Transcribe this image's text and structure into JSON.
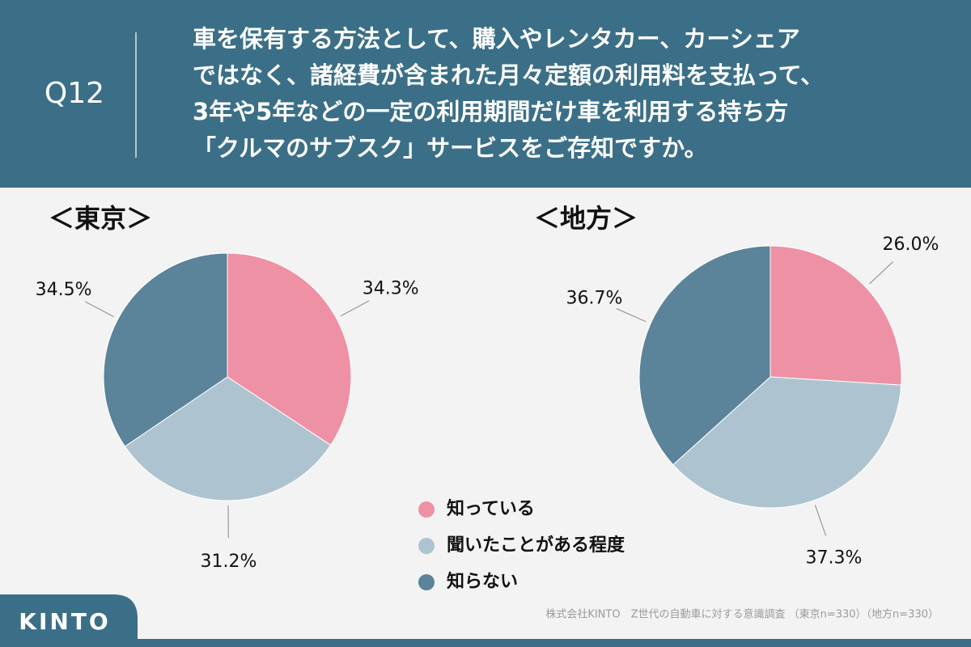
{
  "header": {
    "label": "Q12",
    "question": [
      "車を保有する方法として、購入やレンタカー、カーシェア",
      "ではなく、諸経費が含まれた月々定額の利用料を支払って、",
      "3年や5年などの一定の利用期間だけ車を利用する持ち方",
      "「クルマのサブスク」サービスをご存知ですか。"
    ]
  },
  "chart_data": [
    {
      "type": "pie",
      "title": "＜東京＞",
      "categories": [
        "知っている",
        "聞いたことがある程度",
        "知らない"
      ],
      "values": [
        34.3,
        31.2,
        34.5
      ],
      "value_labels": [
        "34.3%",
        "31.2%",
        "34.5%"
      ],
      "colors": [
        "#ee91a5",
        "#adc4d0",
        "#5b8399"
      ]
    },
    {
      "type": "pie",
      "title": "＜地方＞",
      "categories": [
        "知っている",
        "聞いたことがある程度",
        "知らない"
      ],
      "values": [
        26.0,
        37.3,
        36.7
      ],
      "value_labels": [
        "26.0%",
        "37.3%",
        "36.7%"
      ],
      "colors": [
        "#ee91a5",
        "#adc4d0",
        "#5b8399"
      ]
    }
  ],
  "footer": {
    "source": "株式会社KINTO　Z世代の自動車に対する意識調査 （東京n=330）（地方n=330）",
    "logo": "KINTO"
  }
}
